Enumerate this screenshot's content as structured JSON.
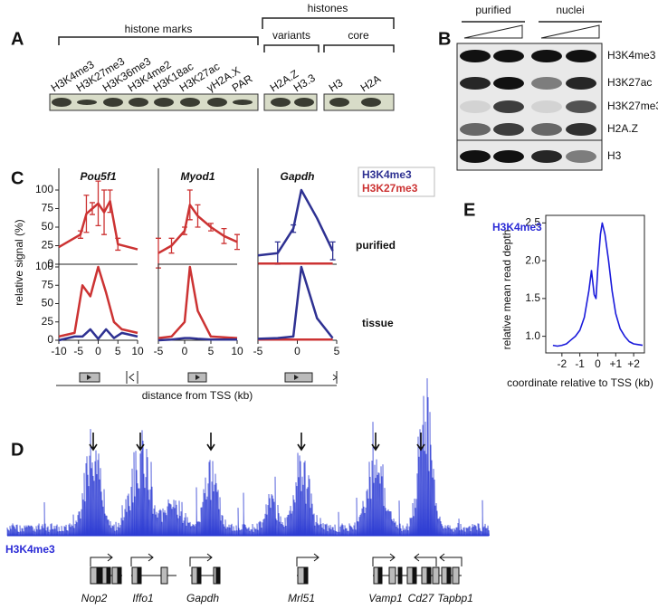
{
  "panel_a": {
    "label": "A",
    "histone_marks": "histone marks",
    "histones": "histones",
    "variants": "variants",
    "core": "core",
    "lanes": [
      "H3K4me3",
      "H3K27me3",
      "H3K36me3",
      "H3K4me2",
      "H3K18ac",
      "H3K27ac",
      "γH2A.X",
      "PAR",
      "H2A.Z",
      "H3.3",
      "H3",
      "H2A"
    ]
  },
  "panel_b": {
    "label": "B",
    "conditions": [
      "purified",
      "nuclei"
    ],
    "rows": [
      "H3K4me3",
      "H3K27ac",
      "H3K27me3",
      "H2A.Z",
      "H3"
    ]
  },
  "panel_c": {
    "label": "C",
    "genes": [
      "Pou5f1",
      "Myod1",
      "Gapdh"
    ],
    "ylabel": "relative signal (%)",
    "xlabel": "distance from TSS (kb)",
    "rows": [
      "purified",
      "tissue"
    ]
  },
  "panel_d": {
    "label": "D",
    "track": "H3K4me3",
    "genes": [
      "Nop2",
      "Iffo1",
      "Gapdh",
      "Mrl51",
      "Vamp1",
      "Cd27",
      "Tapbp1"
    ]
  },
  "panel_e": {
    "label": "E"
  },
  "chart_data": [
    {
      "type": "line",
      "x": [
        -10,
        -4.5,
        -3,
        -1.5,
        0,
        1.5,
        3,
        5,
        10
      ],
      "xlim": [
        -10,
        10
      ],
      "ylim": [
        0,
        100
      ],
      "yticks": [
        0,
        25,
        50,
        75,
        100
      ],
      "series": [
        {
          "color": "#cc3333",
          "values": [
            23,
            40,
            68,
            75,
            82,
            70,
            85,
            27,
            20
          ],
          "errors": [
            null,
            5,
            25,
            8,
            30,
            30,
            15,
            8,
            null
          ]
        }
      ]
    },
    {
      "type": "line",
      "x": [
        -5,
        -2.5,
        0,
        1,
        2.5,
        5,
        7.5,
        10
      ],
      "xlim": [
        -5,
        10
      ],
      "ylim": [
        0,
        100
      ],
      "series": [
        {
          "color": "#cc3333",
          "values": [
            15,
            25,
            45,
            80,
            65,
            50,
            38,
            30
          ],
          "errors": [
            20,
            10,
            5,
            20,
            15,
            5,
            10,
            10
          ]
        }
      ]
    },
    {
      "type": "line",
      "x": [
        -5,
        -2.5,
        -0.5,
        0.5,
        2.5,
        4.5
      ],
      "xlim": [
        -5,
        5
      ],
      "ylim": [
        0,
        100
      ],
      "series": [
        {
          "name": "H3K4me3",
          "color": "#2e3192",
          "values": [
            12,
            15,
            48,
            100,
            62,
            18
          ],
          "errors": [
            null,
            15,
            5,
            null,
            null,
            12
          ]
        },
        {
          "name": "H3K27me3",
          "color": "#cc3333",
          "values": [
            1,
            1,
            1,
            1,
            1,
            1
          ]
        }
      ]
    },
    {
      "type": "line",
      "x": [
        -10,
        -6,
        -4,
        -2,
        0,
        2,
        4,
        6,
        10
      ],
      "xlim": [
        -10,
        10
      ],
      "ylim": [
        0,
        100
      ],
      "yticks": [
        0,
        25,
        50,
        75,
        100
      ],
      "xticks": [
        -10,
        -5,
        0,
        5,
        10
      ],
      "series": [
        {
          "color": "#cc3333",
          "values": [
            5,
            10,
            75,
            60,
            100,
            65,
            25,
            15,
            10
          ]
        },
        {
          "color": "#2e3192",
          "values": [
            0,
            5,
            5,
            15,
            2,
            15,
            3,
            10,
            5
          ]
        }
      ]
    },
    {
      "type": "line",
      "x": [
        -5,
        -2.5,
        0,
        1,
        2.5,
        5,
        7.5,
        10
      ],
      "xlim": [
        -5,
        10
      ],
      "ylim": [
        0,
        100
      ],
      "xticks": [
        -5,
        0,
        5,
        10
      ],
      "series": [
        {
          "color": "#cc3333",
          "values": [
            3,
            5,
            25,
            100,
            40,
            5,
            4,
            3
          ]
        },
        {
          "color": "#2e3192",
          "values": [
            0,
            1,
            3,
            3,
            2,
            1,
            1,
            1
          ]
        }
      ]
    },
    {
      "type": "line",
      "x": [
        -5,
        -2.5,
        -0.5,
        0.5,
        2.5,
        4.5
      ],
      "xlim": [
        -5,
        5
      ],
      "ylim": [
        0,
        100
      ],
      "xticks": [
        -5,
        0,
        5
      ],
      "series": [
        {
          "color": "#cc3333",
          "values": [
            1,
            1,
            1,
            1,
            1,
            1
          ]
        },
        {
          "color": "#2e3192",
          "values": [
            2,
            3,
            5,
            100,
            30,
            3
          ]
        }
      ]
    },
    {
      "type": "line",
      "title": "H3K4me3",
      "xlabel": "coordinate relative to TSS (kb)",
      "ylabel": "relative mean read depth",
      "x": [
        -2.5,
        -2.25,
        -2,
        -1.75,
        -1.5,
        -1.25,
        -1,
        -0.75,
        -0.5,
        -0.35,
        -0.2,
        -0.1,
        0,
        0.15,
        0.25,
        0.4,
        0.6,
        0.8,
        1,
        1.25,
        1.5,
        1.75,
        2,
        2.25,
        2.5
      ],
      "xlim": [
        -2.9,
        2.6
      ],
      "ylim": [
        0.78,
        2.6
      ],
      "xticks": [
        -2,
        -1,
        0,
        {
          "value": 1,
          "label": "+1"
        },
        {
          "value": 2,
          "label": "+2"
        }
      ],
      "yticks": [
        {
          "value": 1,
          "label": "1.0"
        },
        {
          "value": 1.5,
          "label": "1.5"
        },
        {
          "value": 2,
          "label": "2.0"
        },
        {
          "value": 2.5,
          "label": "2.5"
        }
      ],
      "series": [
        {
          "color": "#1a1adb",
          "values": [
            0.88,
            0.87,
            0.88,
            0.9,
            0.95,
            1.0,
            1.08,
            1.25,
            1.6,
            1.87,
            1.55,
            1.5,
            1.9,
            2.35,
            2.5,
            2.35,
            2.0,
            1.6,
            1.3,
            1.1,
            1.0,
            0.93,
            0.9,
            0.89,
            0.88
          ]
        }
      ]
    }
  ]
}
